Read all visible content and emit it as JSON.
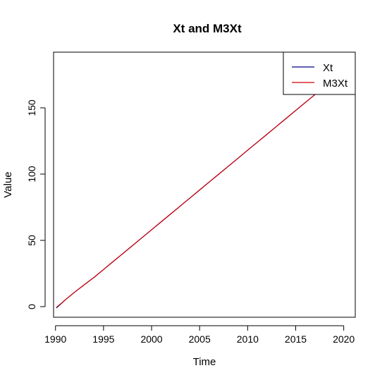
{
  "chart_data": {
    "type": "line",
    "title": "Xt and M3Xt",
    "xlabel": "Time",
    "ylabel": "Value",
    "xlim": [
      1989.8,
      2021.2
    ],
    "ylim": [
      -8,
      192
    ],
    "x_ticks": [
      1990,
      1995,
      2000,
      2005,
      2010,
      2015,
      2020
    ],
    "x_tick_labels": [
      "1990",
      "1995",
      "2000",
      "2005",
      "2010",
      "2015",
      "2020"
    ],
    "y_ticks": [
      0,
      50,
      100,
      150
    ],
    "y_tick_labels": [
      "0",
      "50",
      "100",
      "150"
    ],
    "grid": false,
    "legend_position": "top-right",
    "series": [
      {
        "name": "Xt",
        "color": "#00008b",
        "x": [
          1990.1,
          1991,
          1992,
          1993,
          1994,
          1995,
          1996,
          1997,
          1998,
          1999,
          2000,
          2001,
          2002,
          2003,
          2004,
          2005,
          2006,
          2007,
          2008,
          2009,
          2010,
          2011,
          2012,
          2013,
          2014,
          2015,
          2016,
          2017,
          2018,
          2019,
          2020,
          2020.7
        ],
        "values": [
          -1,
          5,
          11,
          16.5,
          22,
          28,
          34,
          40,
          46,
          52,
          58,
          64,
          70,
          76,
          82,
          88,
          94,
          100,
          106,
          112,
          118,
          124,
          130,
          136,
          142,
          148,
          154,
          160,
          166,
          172,
          178,
          183
        ]
      },
      {
        "name": "M3Xt",
        "color": "#cc0000",
        "x": [
          1990.1,
          1991,
          1992,
          1993,
          1994,
          1995,
          1996,
          1997,
          1998,
          1999,
          2000,
          2001,
          2002,
          2003,
          2004,
          2005,
          2006,
          2007,
          2008,
          2009,
          2010,
          2011,
          2012,
          2013,
          2014,
          2015,
          2016,
          2017,
          2018,
          2019,
          2020,
          2020.7
        ],
        "values": [
          -0.5,
          5,
          11,
          16.5,
          22,
          28,
          34,
          40,
          46,
          52,
          58,
          64,
          70,
          76,
          82,
          88,
          94,
          100,
          106,
          112,
          118,
          124,
          130,
          136,
          142,
          148,
          154,
          160,
          166,
          172,
          178,
          182.5
        ]
      }
    ]
  }
}
